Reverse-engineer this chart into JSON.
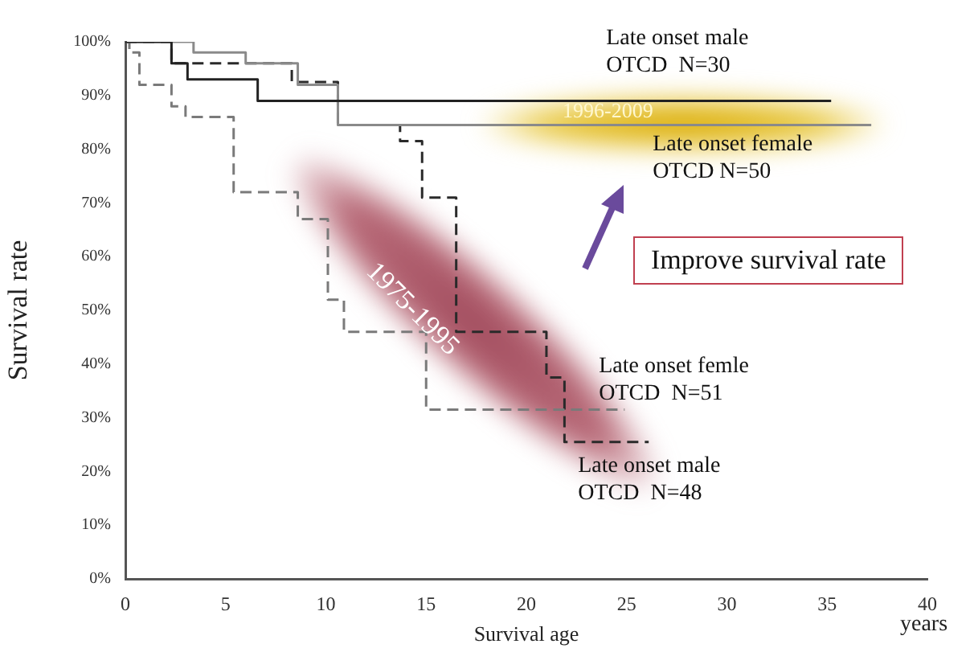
{
  "chart_data": {
    "type": "step",
    "xlabel": "Survival age",
    "ylabel": "Survival rate",
    "annotations": [
      "1996-2009",
      "1975-1995",
      "Improve survival rate",
      "years"
    ],
    "xlim": [
      0,
      40
    ],
    "xticks": [
      0,
      5,
      10,
      15,
      20,
      25,
      30,
      35,
      40
    ],
    "ylim": [
      0,
      100
    ],
    "yticks": [
      {
        "value": 0,
        "label": "0%"
      },
      {
        "value": 10,
        "label": "10%"
      },
      {
        "value": 20,
        "label": "20%"
      },
      {
        "value": 30,
        "label": "30%"
      },
      {
        "value": 40,
        "label": "40%"
      },
      {
        "value": 50,
        "label": "50%"
      },
      {
        "value": 60,
        "label": "60%"
      },
      {
        "value": 70,
        "label": "70%"
      },
      {
        "value": 80,
        "label": "80%"
      },
      {
        "value": 90,
        "label": "90%"
      },
      {
        "value": 100,
        "label": "100%"
      }
    ],
    "grid": false,
    "legend": false,
    "marker": "none",
    "series": [
      {
        "name": "Late onset male\nOTCD  N=30",
        "color": "#222222",
        "line_style": "solid",
        "x": [
          0,
          2.3,
          3.1,
          6.6,
          35.2
        ],
        "values": [
          100,
          96,
          93,
          89,
          89
        ]
      },
      {
        "name": "Late onset female\nOTCD N=50",
        "color": "#8a8a8a",
        "line_style": "solid",
        "x": [
          0,
          3.4,
          6,
          8.6,
          10.6,
          37.2
        ],
        "values": [
          100,
          98,
          96,
          92,
          84.5,
          84.5
        ]
      },
      {
        "name": "Late onset femle\nOTCD  N=51",
        "color": "#7a7a7a",
        "line_style": "dashed",
        "x": [
          0,
          0.2,
          0.7,
          2.3,
          3,
          5.4,
          8.6,
          10.1,
          10.9,
          15,
          24.9
        ],
        "values": [
          100,
          98,
          92,
          88,
          86,
          72,
          67,
          52,
          46,
          31.5,
          31.5
        ]
      },
      {
        "name": "Late onset male\nOTCD  N=48",
        "color": "#2a2a2a",
        "line_style": "dashed",
        "x": [
          0,
          2.3,
          8.3,
          10.6,
          13.7,
          14.8,
          16.5,
          21,
          21.9,
          26.1
        ],
        "values": [
          100,
          96,
          92.5,
          84.5,
          81.5,
          71,
          46,
          37.5,
          25.5,
          25.5
        ]
      }
    ]
  }
}
